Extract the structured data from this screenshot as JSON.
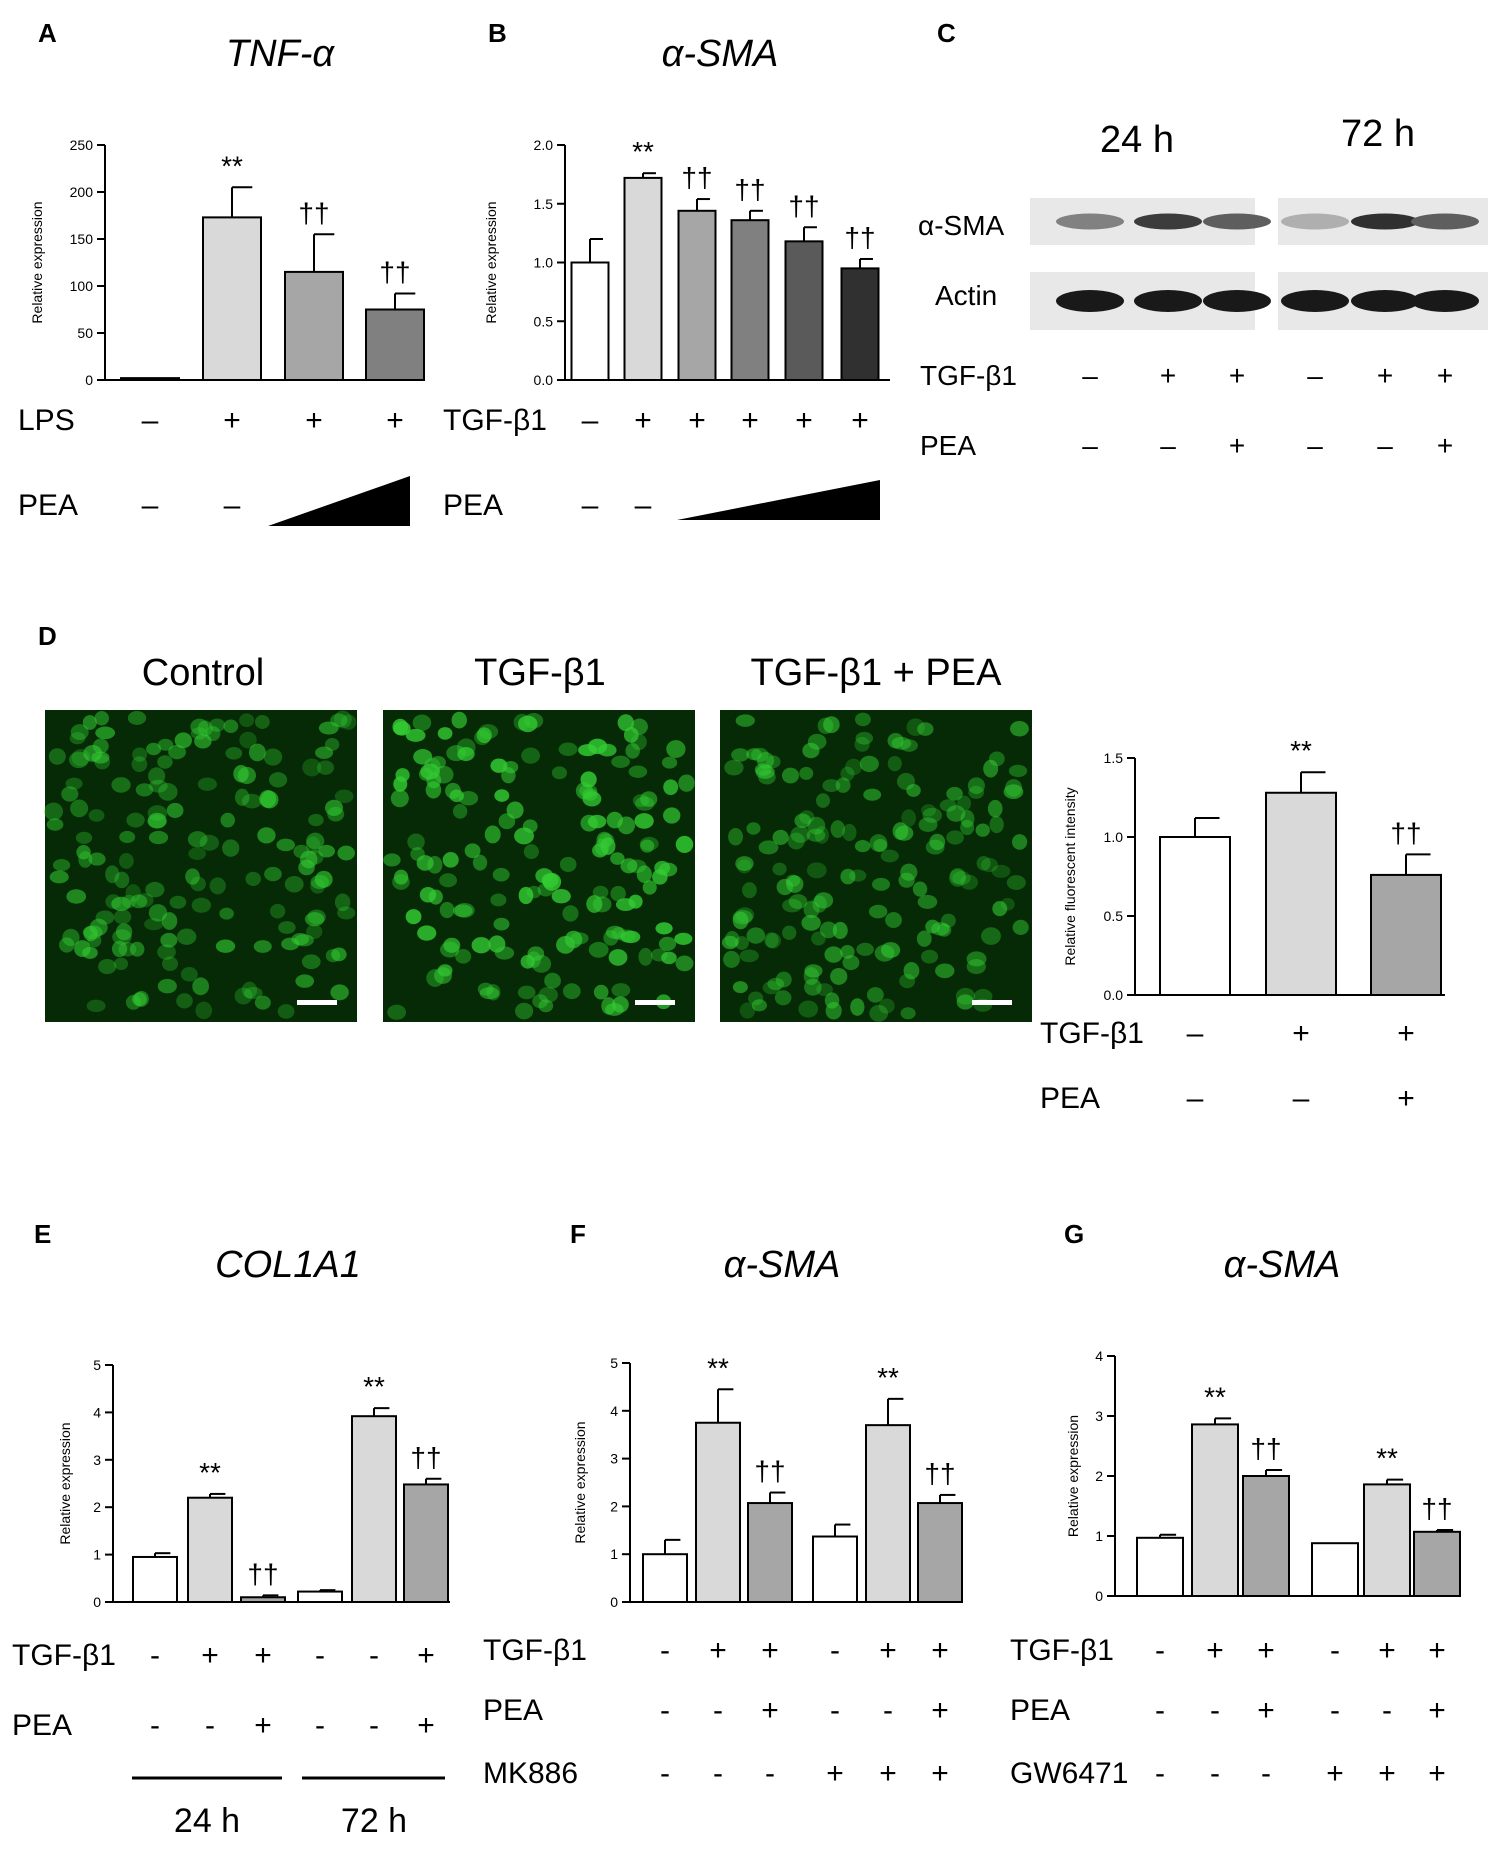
{
  "panels": {
    "A": {
      "letter": "A",
      "treatment_rows": [
        {
          "label": "LPS",
          "marks": [
            "–",
            "+",
            "+",
            "+"
          ]
        },
        {
          "label": "PEA",
          "marks": [
            "–",
            "–",
            "",
            ""
          ],
          "gradient_from": 2
        }
      ]
    },
    "B": {
      "letter": "B",
      "treatment_rows": [
        {
          "label": "TGF-β1",
          "marks": [
            "–",
            "+",
            "+",
            "+",
            "+",
            "+"
          ]
        },
        {
          "label": "PEA",
          "marks": [
            "–",
            "–",
            "",
            "",
            "",
            ""
          ],
          "gradient_from": 2
        }
      ]
    },
    "C": {
      "letter": "C",
      "time_labels": [
        "24 h",
        "72 h"
      ],
      "row_labels": [
        "α-SMA",
        "Actin"
      ],
      "treatment_rows": [
        {
          "label": "TGF-β1",
          "marks": [
            "–",
            "+",
            "+",
            "–",
            "+",
            "+"
          ]
        },
        {
          "label": "PEA",
          "marks": [
            "–",
            "–",
            "+",
            "–",
            "–",
            "+"
          ]
        }
      ],
      "blot_band_intensity": {
        "α-SMA": [
          0.55,
          0.85,
          0.7,
          0.35,
          0.9,
          0.7
        ],
        "Actin": [
          1,
          1,
          1,
          1,
          1,
          1
        ]
      }
    },
    "D": {
      "letter": "D",
      "image_titles": [
        "Control",
        "TGF-β1",
        "TGF-β1  + PEA"
      ],
      "image_brightness": [
        0.75,
        1.0,
        0.7
      ],
      "treatment_rows": [
        {
          "label": "TGF-β1",
          "marks": [
            "–",
            "+",
            "+"
          ]
        },
        {
          "label": "PEA",
          "marks": [
            "–",
            "–",
            "+"
          ]
        }
      ]
    },
    "E": {
      "letter": "E",
      "treatment_rows": [
        {
          "label": "TGF-β1",
          "marks": [
            "-",
            "+",
            "+",
            "-",
            "-",
            "+"
          ]
        },
        {
          "label": "PEA",
          "marks": [
            "-",
            "-",
            "+",
            "-",
            "-",
            "+"
          ]
        }
      ],
      "time_labels": [
        "24 h",
        "72 h"
      ]
    },
    "F": {
      "letter": "F",
      "treatment_rows": [
        {
          "label": "TGF-β1",
          "marks": [
            "-",
            "+",
            "+",
            "-",
            "+",
            "+"
          ]
        },
        {
          "label": "PEA",
          "marks": [
            "-",
            "-",
            "+",
            "-",
            "-",
            "+"
          ]
        },
        {
          "label": "MK886",
          "marks": [
            "-",
            "-",
            "-",
            "+",
            "+",
            "+"
          ]
        }
      ]
    },
    "G": {
      "letter": "G",
      "treatment_rows": [
        {
          "label": "TGF-β1",
          "marks": [
            "-",
            "+",
            "+",
            "-",
            "+",
            "+"
          ]
        },
        {
          "label": "PEA",
          "marks": [
            "-",
            "-",
            "+",
            "-",
            "-",
            "+"
          ]
        },
        {
          "label": "GW6471",
          "marks": [
            "-",
            "-",
            "-",
            "+",
            "+",
            "+"
          ]
        }
      ]
    }
  },
  "colors": {
    "bar_white": "#ffffff",
    "bar_light": "#d9d9d9",
    "bar_mid": "#a6a6a6",
    "bar_dark": "#808080",
    "bar_darker": "#5a5a5a",
    "bar_darkest": "#303030",
    "fluorescence": "#33cc33"
  },
  "chart_data": [
    {
      "panel": "A",
      "type": "bar",
      "title": "TNF-α",
      "ylabel": "Relative expression",
      "ylim": [
        0,
        250
      ],
      "yticks": [
        0,
        50,
        100,
        150,
        200,
        250
      ],
      "values": [
        2,
        173,
        115,
        75
      ],
      "errors": [
        0,
        32,
        40,
        17
      ],
      "annotations": [
        "",
        "**",
        "††",
        "††"
      ],
      "bar_colors": [
        "bar_white",
        "bar_light",
        "bar_mid",
        "bar_dark"
      ]
    },
    {
      "panel": "B",
      "type": "bar",
      "title": "α-SMA",
      "ylabel": "Relative expression",
      "ylim": [
        0,
        2.0
      ],
      "yticks": [
        "0.0",
        "0.5",
        "1.0",
        "1.5",
        "2.0"
      ],
      "values": [
        1.0,
        1.72,
        1.44,
        1.36,
        1.18,
        0.95
      ],
      "errors": [
        0.2,
        0.04,
        0.1,
        0.08,
        0.12,
        0.08
      ],
      "annotations": [
        "",
        "**",
        "††",
        "††",
        "††",
        "††"
      ],
      "bar_colors": [
        "bar_white",
        "bar_light",
        "bar_mid",
        "bar_dark",
        "bar_darker",
        "bar_darkest"
      ]
    },
    {
      "panel": "D",
      "type": "bar",
      "title": "",
      "ylabel": "Relative fluorescent intensity",
      "ylim": [
        0,
        1.5
      ],
      "yticks": [
        "0.0",
        "0.5",
        "1.0",
        "1.5"
      ],
      "values": [
        1.0,
        1.28,
        0.76
      ],
      "errors": [
        0.12,
        0.13,
        0.13
      ],
      "annotations": [
        "",
        "**",
        "††"
      ],
      "bar_colors": [
        "bar_white",
        "bar_light",
        "bar_mid"
      ]
    },
    {
      "panel": "E",
      "type": "bar",
      "title": "COL1A1",
      "ylabel": "Relative expression",
      "ylim": [
        0,
        5
      ],
      "yticks": [
        0,
        1,
        2,
        3,
        4,
        5
      ],
      "values": [
        0.95,
        2.2,
        0.1,
        0.22,
        3.92,
        2.48
      ],
      "errors": [
        0.08,
        0.08,
        0.04,
        0.03,
        0.17,
        0.12
      ],
      "annotations": [
        "",
        "**",
        "††",
        "",
        "**",
        "††"
      ],
      "bar_colors": [
        "bar_white",
        "bar_light",
        "bar_mid",
        "bar_white",
        "bar_light",
        "bar_mid"
      ]
    },
    {
      "panel": "F",
      "type": "bar",
      "title": "α-SMA",
      "ylabel": "Relative expression",
      "ylim": [
        0,
        5
      ],
      "yticks": [
        0,
        1,
        2,
        3,
        4,
        5
      ],
      "values": [
        1.0,
        3.75,
        2.07,
        1.37,
        3.7,
        2.07
      ],
      "errors": [
        0.3,
        0.7,
        0.22,
        0.25,
        0.55,
        0.17
      ],
      "annotations": [
        "",
        "**",
        "††",
        "",
        "**",
        "††"
      ],
      "bar_colors": [
        "bar_white",
        "bar_light",
        "bar_mid",
        "bar_white",
        "bar_light",
        "bar_mid"
      ]
    },
    {
      "panel": "G",
      "type": "bar",
      "title": "α-SMA",
      "ylabel": "Relative expression",
      "ylim": [
        0,
        4
      ],
      "yticks": [
        0,
        1,
        2,
        3,
        4
      ],
      "values": [
        0.97,
        2.86,
        2.0,
        0.88,
        1.86,
        1.07
      ],
      "errors": [
        0.05,
        0.1,
        0.1,
        0.0,
        0.08,
        0.03
      ],
      "annotations": [
        "",
        "**",
        "††",
        "",
        "**",
        "††"
      ],
      "bar_colors": [
        "bar_white",
        "bar_light",
        "bar_mid",
        "bar_white",
        "bar_light",
        "bar_mid"
      ]
    }
  ]
}
